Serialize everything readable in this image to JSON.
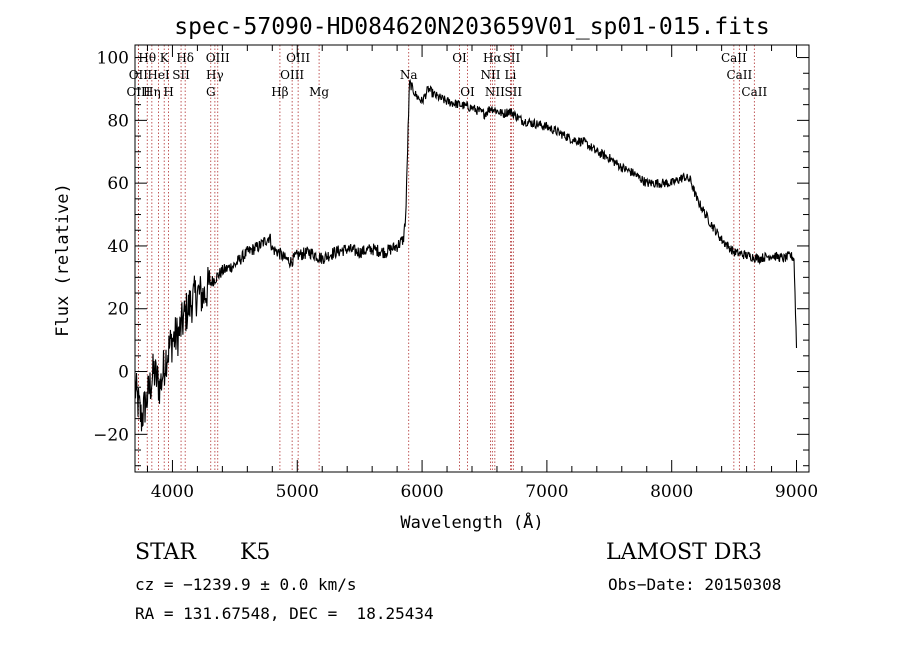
{
  "chart_data": {
    "type": "line",
    "title": "spec-57090-HD084620N203659V01_sp01-015.fits",
    "xlabel": "Wavelength (Å)",
    "ylabel": "Flux (relative)",
    "xlim": [
      3700,
      9100
    ],
    "ylim": [
      -32,
      104
    ],
    "xticks": [
      4000,
      5000,
      6000,
      7000,
      8000,
      9000
    ],
    "yticks": [
      -20,
      0,
      20,
      40,
      60,
      80,
      100
    ],
    "series": [
      {
        "x": [
          3700,
          3750,
          3800,
          3850,
          3900,
          3950,
          4000,
          4050,
          4100,
          4150,
          4200,
          4250,
          4300,
          4350,
          4400,
          4500,
          4600,
          4700,
          4780,
          4800,
          4850,
          4900,
          4950,
          5000,
          5100,
          5200,
          5300,
          5400,
          5500,
          5600,
          5700,
          5800,
          5850,
          5870,
          5880,
          5890,
          5900,
          5950,
          6000,
          6050,
          6100,
          6150,
          6200,
          6300,
          6400,
          6500,
          6550,
          6600,
          6650,
          6700,
          6800,
          6900,
          7000,
          7100,
          7200,
          7300,
          7400,
          7500,
          7600,
          7700,
          7800,
          7900,
          8000,
          8100,
          8150,
          8200,
          8300,
          8400,
          8500,
          8600,
          8700,
          8800,
          8900,
          8950,
          8980,
          9000
        ],
        "y": [
          -5,
          -15,
          -8,
          0,
          -5,
          5,
          10,
          12,
          18,
          22,
          25,
          24,
          28,
          30,
          32,
          34,
          38,
          40,
          43,
          39,
          38,
          36,
          35,
          37,
          38,
          36,
          38,
          39,
          38,
          39,
          38,
          40,
          42,
          50,
          65,
          80,
          92,
          88,
          86,
          90,
          88,
          87,
          86,
          85,
          84,
          82,
          84,
          83,
          82,
          83,
          80,
          79,
          78,
          76,
          74,
          73,
          70,
          68,
          65,
          63,
          60,
          60,
          60,
          62,
          61,
          55,
          48,
          42,
          38,
          37,
          36,
          37,
          36,
          37,
          36,
          8
        ]
      }
    ],
    "emission_lines": [
      {
        "label": "Hθ",
        "x": 3798,
        "row": 0
      },
      {
        "label": "OII",
        "x": 3727,
        "row": 1
      },
      {
        "label": "OIII",
        "x": 3728,
        "row": 2
      },
      {
        "label": "HeI",
        "x": 3889,
        "row": 1
      },
      {
        "label": "K",
        "x": 3934,
        "row": 0
      },
      {
        "label": "Hη",
        "x": 3835,
        "row": 2
      },
      {
        "label": "H",
        "x": 3969,
        "row": 2
      },
      {
        "label": "SII",
        "x": 4069,
        "row": 1
      },
      {
        "label": "Hδ",
        "x": 4102,
        "row": 0
      },
      {
        "label": "OIII",
        "x": 4363,
        "row": 0
      },
      {
        "label": "Hγ",
        "x": 4340,
        "row": 1
      },
      {
        "label": "G",
        "x": 4307,
        "row": 2
      },
      {
        "label": "Hβ",
        "x": 4861,
        "row": 2
      },
      {
        "label": "OIII",
        "x": 4959,
        "row": 1
      },
      {
        "label": "OIII",
        "x": 5007,
        "row": 0
      },
      {
        "label": "Mg",
        "x": 5175,
        "row": 2
      },
      {
        "label": "Na",
        "x": 5893,
        "row": 1
      },
      {
        "label": "OI",
        "x": 6300,
        "row": 0
      },
      {
        "label": "OI",
        "x": 6364,
        "row": 2
      },
      {
        "label": "Hα",
        "x": 6563,
        "row": 0
      },
      {
        "label": "NII",
        "x": 6548,
        "row": 1
      },
      {
        "label": "NII",
        "x": 6583,
        "row": 2
      },
      {
        "label": "SII",
        "x": 6716,
        "row": 0
      },
      {
        "label": "Li",
        "x": 6708,
        "row": 1
      },
      {
        "label": "SII",
        "x": 6731,
        "row": 2
      },
      {
        "label": "CaII",
        "x": 8498,
        "row": 0
      },
      {
        "label": "CaII",
        "x": 8542,
        "row": 1
      },
      {
        "label": "CaII",
        "x": 8662,
        "row": 2
      }
    ]
  },
  "info": {
    "class": "STAR",
    "subclass": "K5",
    "survey": "LAMOST DR3",
    "cz": "cz = −1239.9 ± 0.0 km/s",
    "obs_date": "Obs−Date: 20150308",
    "radec": "RA = 131.67548, DEC =  18.25434"
  }
}
